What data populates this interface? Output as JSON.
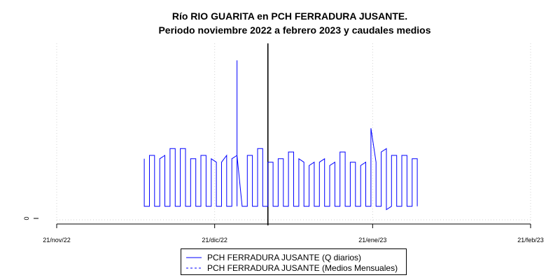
{
  "chart_data": {
    "type": "line",
    "title": "Río RIO GUARITA en PCH FERRADURA JUSANTE.",
    "subtitle": "Periodo noviembre 2022 a febrero 2023 y caudales medios",
    "xlabel": "",
    "ylabel": "",
    "x_ticks": [
      "21/nov/22",
      "21/dic/22",
      "21/ene/23",
      "21/feb/23"
    ],
    "y_ticks": [
      "0"
    ],
    "xlim": [
      "2022-11-21",
      "2023-02-21"
    ],
    "ylim": [
      -4,
      520
    ],
    "grid": true,
    "vline_date": "2023-01-01",
    "legend": {
      "position": "bottom",
      "entries": [
        "PCH FERRADURA JUSANTE (Q diarios)",
        "PCH FERRADURA JUSANTE (Medios Mensuales)"
      ]
    },
    "series": [
      {
        "name": "PCH FERRADURA JUSANTE (Q diarios)",
        "color": "#0000ff",
        "style": "solid",
        "points": [
          [
            "2022-12-08",
            180
          ],
          [
            "2022-12-08",
            40
          ],
          [
            "2022-12-09",
            40
          ],
          [
            "2022-12-09",
            190
          ],
          [
            "2022-12-10",
            190
          ],
          [
            "2022-12-10",
            40
          ],
          [
            "2022-12-11",
            40
          ],
          [
            "2022-12-11",
            180
          ],
          [
            "2022-12-12",
            190
          ],
          [
            "2022-12-12",
            40
          ],
          [
            "2022-12-13",
            40
          ],
          [
            "2022-12-13",
            210
          ],
          [
            "2022-12-14",
            210
          ],
          [
            "2022-12-14",
            40
          ],
          [
            "2022-12-15",
            40
          ],
          [
            "2022-12-15",
            210
          ],
          [
            "2022-12-16",
            210
          ],
          [
            "2022-12-16",
            40
          ],
          [
            "2022-12-17",
            40
          ],
          [
            "2022-12-17",
            180
          ],
          [
            "2022-12-18",
            180
          ],
          [
            "2022-12-18",
            40
          ],
          [
            "2022-12-19",
            40
          ],
          [
            "2022-12-19",
            190
          ],
          [
            "2022-12-20",
            190
          ],
          [
            "2022-12-20",
            40
          ],
          [
            "2022-12-21",
            40
          ],
          [
            "2022-12-21",
            180
          ],
          [
            "2022-12-22",
            170
          ],
          [
            "2022-12-22",
            40
          ],
          [
            "2022-12-23",
            40
          ],
          [
            "2022-12-23",
            170
          ],
          [
            "2022-12-24",
            190
          ],
          [
            "2022-12-24",
            40
          ],
          [
            "2022-12-25",
            40
          ],
          [
            "2022-12-25",
            180
          ],
          [
            "2022-12-26",
            190
          ],
          [
            "2022-12-26",
            40
          ],
          [
            "2022-12-26",
            470
          ],
          [
            "2022-12-26",
            190
          ],
          [
            "2022-12-27",
            40
          ],
          [
            "2022-12-28",
            40
          ],
          [
            "2022-12-28",
            190
          ],
          [
            "2022-12-29",
            190
          ],
          [
            "2022-12-29",
            40
          ],
          [
            "2022-12-30",
            40
          ],
          [
            "2022-12-30",
            210
          ],
          [
            "2022-12-31",
            210
          ],
          [
            "2022-12-31",
            40
          ],
          [
            "2023-01-01",
            40
          ],
          [
            "2023-01-01",
            170
          ],
          [
            "2023-01-02",
            170
          ],
          [
            "2023-01-02",
            40
          ],
          [
            "2023-01-03",
            40
          ],
          [
            "2023-01-03",
            180
          ],
          [
            "2023-01-04",
            180
          ],
          [
            "2023-01-04",
            40
          ],
          [
            "2023-01-05",
            40
          ],
          [
            "2023-01-05",
            200
          ],
          [
            "2023-01-06",
            200
          ],
          [
            "2023-01-06",
            40
          ],
          [
            "2023-01-07",
            40
          ],
          [
            "2023-01-07",
            180
          ],
          [
            "2023-01-08",
            170
          ],
          [
            "2023-01-08",
            40
          ],
          [
            "2023-01-09",
            40
          ],
          [
            "2023-01-09",
            160
          ],
          [
            "2023-01-10",
            170
          ],
          [
            "2023-01-10",
            40
          ],
          [
            "2023-01-11",
            40
          ],
          [
            "2023-01-11",
            170
          ],
          [
            "2023-01-12",
            180
          ],
          [
            "2023-01-12",
            40
          ],
          [
            "2023-01-13",
            40
          ],
          [
            "2023-01-13",
            160
          ],
          [
            "2023-01-14",
            170
          ],
          [
            "2023-01-14",
            40
          ],
          [
            "2023-01-15",
            40
          ],
          [
            "2023-01-15",
            200
          ],
          [
            "2023-01-16",
            200
          ],
          [
            "2023-01-16",
            40
          ],
          [
            "2023-01-17",
            40
          ],
          [
            "2023-01-17",
            170
          ],
          [
            "2023-01-18",
            170
          ],
          [
            "2023-01-18",
            40
          ],
          [
            "2023-01-19",
            40
          ],
          [
            "2023-01-19",
            160
          ],
          [
            "2023-01-20",
            170
          ],
          [
            "2023-01-20",
            40
          ],
          [
            "2023-01-21",
            40
          ],
          [
            "2023-01-21",
            270
          ],
          [
            "2023-01-22",
            170
          ],
          [
            "2023-01-22",
            40
          ],
          [
            "2023-01-23",
            40
          ],
          [
            "2023-01-23",
            200
          ],
          [
            "2023-01-24",
            210
          ],
          [
            "2023-01-24",
            30
          ],
          [
            "2023-01-25",
            40
          ],
          [
            "2023-01-25",
            190
          ],
          [
            "2023-01-26",
            190
          ],
          [
            "2023-01-26",
            40
          ],
          [
            "2023-01-27",
            40
          ],
          [
            "2023-01-27",
            190
          ],
          [
            "2023-01-28",
            190
          ],
          [
            "2023-01-28",
            40
          ],
          [
            "2023-01-29",
            40
          ],
          [
            "2023-01-29",
            180
          ],
          [
            "2023-01-30",
            180
          ],
          [
            "2023-01-30",
            40
          ]
        ]
      }
    ]
  }
}
